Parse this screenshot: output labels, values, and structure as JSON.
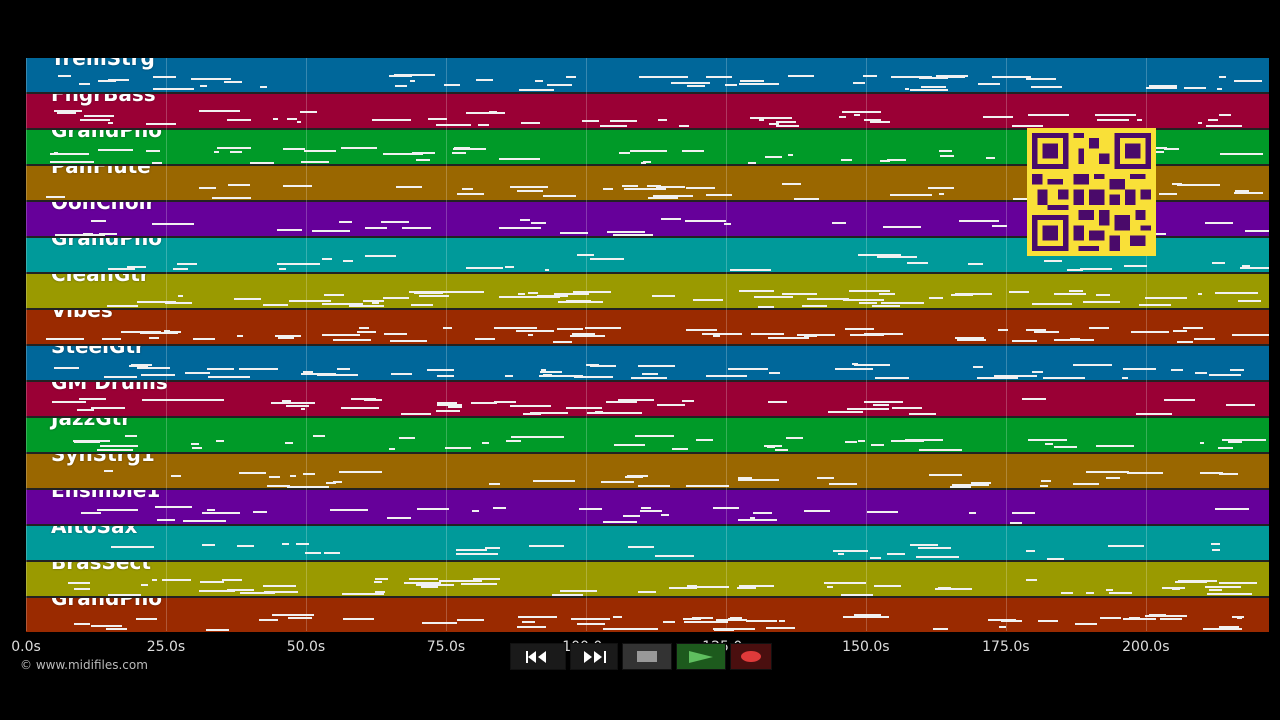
{
  "tracks": [
    {
      "name": "TremStrg",
      "color": "#00679a"
    },
    {
      "name": "FngrBass",
      "color": "#9a0035"
    },
    {
      "name": "GrandPno",
      "color": "#009a28"
    },
    {
      "name": "PanFlute",
      "color": "#9a6700"
    },
    {
      "name": "OohChoir",
      "color": "#66009a"
    },
    {
      "name": "GrandPno",
      "color": "#009a9a"
    },
    {
      "name": "CleanGtr",
      "color": "#9a9a00"
    },
    {
      "name": "Vibes",
      "color": "#9a2a00"
    },
    {
      "name": "SteelGtr",
      "color": "#00679a"
    },
    {
      "name": "GM Drums",
      "color": "#9a0035"
    },
    {
      "name": "JazzGtr",
      "color": "#009a28"
    },
    {
      "name": "SynStrg1",
      "color": "#9a6700"
    },
    {
      "name": "Ensmble1",
      "color": "#66009a"
    },
    {
      "name": "AltoSax",
      "color": "#009a9a"
    },
    {
      "name": "BrasSect",
      "color": "#9a9a00"
    },
    {
      "name": "GrandPno",
      "color": "#9a2a00"
    }
  ],
  "time_axis": {
    "unit": "s",
    "max": 222,
    "ticks": [
      "0.0s",
      "25.0s",
      "50.0s",
      "75.0s",
      "100.0s",
      "125.0s",
      "150.0s",
      "175.0s",
      "200.0s"
    ],
    "tick_values": [
      0,
      25,
      50,
      75,
      100,
      125,
      150,
      175,
      200
    ]
  },
  "transport": {
    "buttons": [
      {
        "name": "rewind-button",
        "icon": "rewind-icon"
      },
      {
        "name": "fast-forward-button",
        "icon": "fast-forward-icon"
      },
      {
        "name": "stop-button",
        "icon": "stop-icon"
      },
      {
        "name": "play-button",
        "icon": "play-icon"
      },
      {
        "name": "record-button",
        "icon": "record-icon"
      }
    ]
  },
  "copyright": "© www.midifiles.com",
  "qr_code": {
    "icon": "qr-code-icon"
  }
}
